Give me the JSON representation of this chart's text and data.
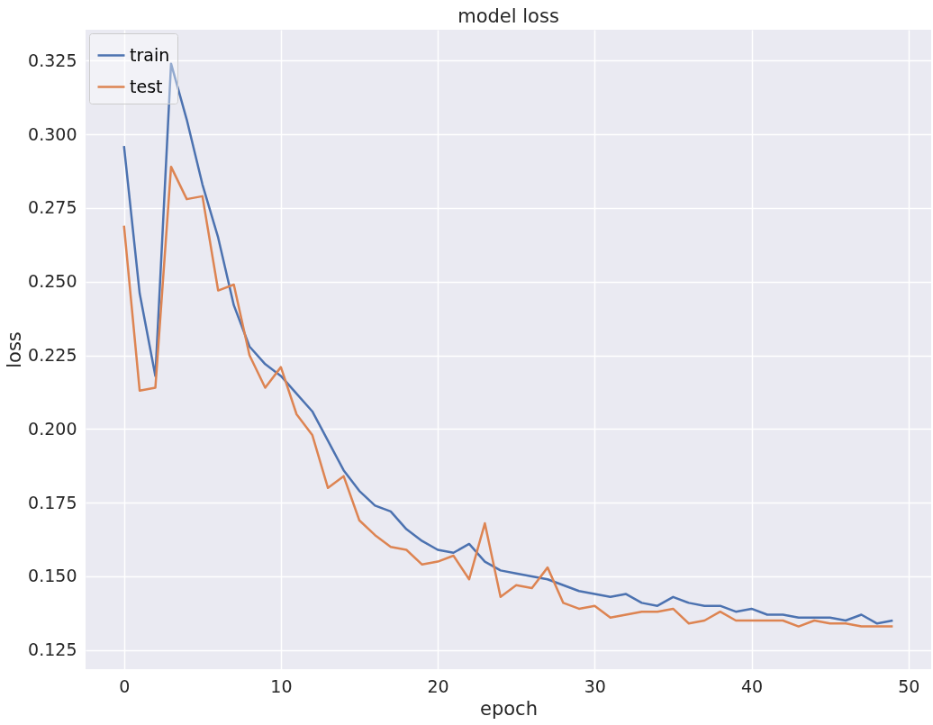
{
  "chart_data": {
    "type": "line",
    "title": "model loss",
    "xlabel": "epoch",
    "ylabel": "loss",
    "x": [
      0,
      1,
      2,
      3,
      4,
      5,
      6,
      7,
      8,
      9,
      10,
      11,
      12,
      13,
      14,
      15,
      16,
      17,
      18,
      19,
      20,
      21,
      22,
      23,
      24,
      25,
      26,
      27,
      28,
      29,
      30,
      31,
      32,
      33,
      34,
      35,
      36,
      37,
      38,
      39,
      40,
      41,
      42,
      43,
      44,
      45,
      46,
      47,
      48,
      49
    ],
    "series": [
      {
        "name": "train",
        "color": "#4c72b0",
        "values": [
          0.296,
          0.246,
          0.218,
          0.324,
          0.305,
          0.283,
          0.265,
          0.242,
          0.228,
          0.222,
          0.218,
          0.212,
          0.206,
          0.196,
          0.186,
          0.179,
          0.174,
          0.172,
          0.166,
          0.162,
          0.159,
          0.158,
          0.161,
          0.155,
          0.152,
          0.151,
          0.15,
          0.149,
          0.147,
          0.145,
          0.144,
          0.143,
          0.144,
          0.141,
          0.14,
          0.143,
          0.141,
          0.14,
          0.14,
          0.138,
          0.139,
          0.137,
          0.137,
          0.136,
          0.136,
          0.136,
          0.135,
          0.137,
          0.134,
          0.135
        ]
      },
      {
        "name": "test",
        "color": "#dd8452",
        "values": [
          0.269,
          0.213,
          0.214,
          0.289,
          0.278,
          0.279,
          0.247,
          0.249,
          0.225,
          0.214,
          0.221,
          0.205,
          0.198,
          0.18,
          0.184,
          0.169,
          0.164,
          0.16,
          0.159,
          0.154,
          0.155,
          0.157,
          0.149,
          0.168,
          0.143,
          0.147,
          0.146,
          0.153,
          0.141,
          0.139,
          0.14,
          0.136,
          0.137,
          0.138,
          0.138,
          0.139,
          0.134,
          0.135,
          0.138,
          0.135,
          0.135,
          0.135,
          0.135,
          0.133,
          0.135,
          0.134,
          0.134,
          0.133,
          0.133,
          0.133
        ]
      }
    ],
    "xlim": [
      -2.45,
      51.45
    ],
    "ylim": [
      0.1185,
      0.3355
    ],
    "xticks": [
      0,
      10,
      20,
      30,
      40,
      50
    ],
    "yticks": [
      {
        "value": 0.125,
        "label": "0.125"
      },
      {
        "value": 0.15,
        "label": "0.150"
      },
      {
        "value": 0.175,
        "label": "0.175"
      },
      {
        "value": 0.2,
        "label": "0.200"
      },
      {
        "value": 0.225,
        "label": "0.225"
      },
      {
        "value": 0.25,
        "label": "0.250"
      },
      {
        "value": 0.275,
        "label": "0.275"
      },
      {
        "value": 0.3,
        "label": "0.300"
      },
      {
        "value": 0.325,
        "label": "0.325"
      }
    ],
    "grid": true,
    "legend": "top left",
    "marker": "none",
    "line_style": "solid"
  }
}
